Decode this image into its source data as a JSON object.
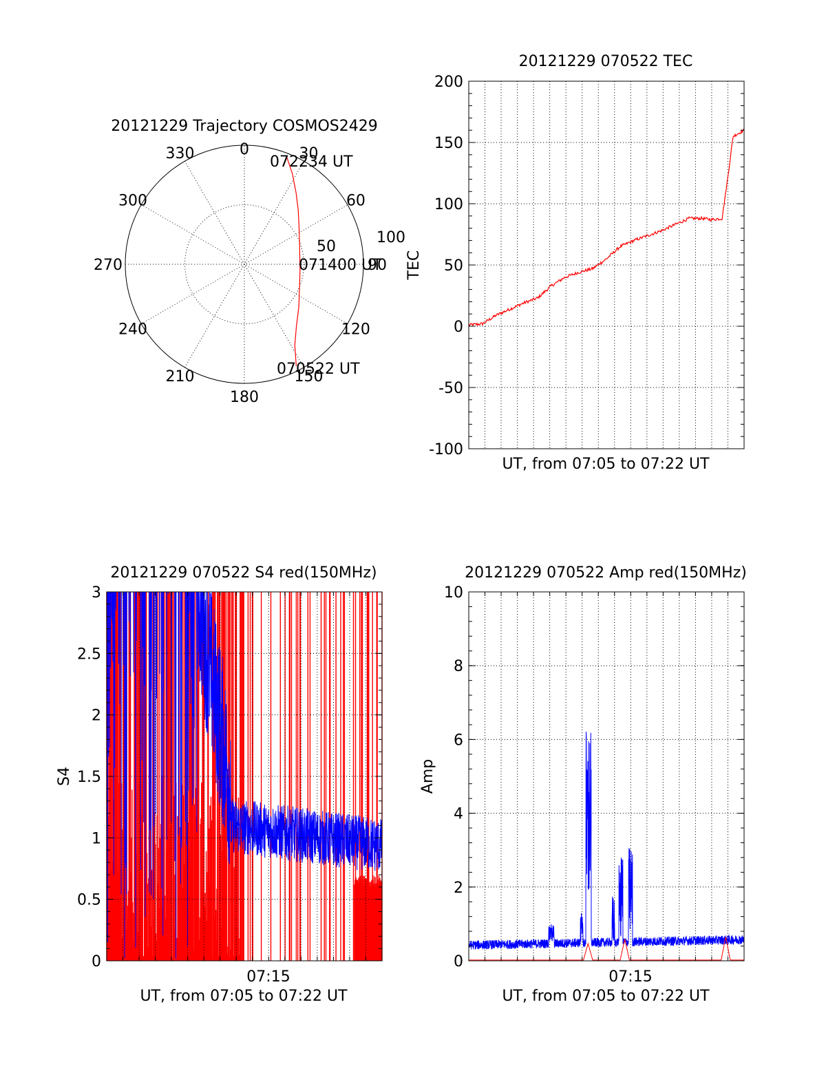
{
  "colors": {
    "red_channel": "#ff0000",
    "blue_channel": "#0000ff",
    "axes": "#000000"
  },
  "polar": {
    "title": "20121229 Trajectory COSMOS2429",
    "azimuth_labels": [
      "0",
      "30",
      "60",
      "90",
      "120",
      "150",
      "180",
      "210",
      "240",
      "270",
      "300",
      "330"
    ],
    "radial_labels": [
      "50",
      "100"
    ],
    "time_labels": [
      "072234 UT",
      "071400 UT",
      "070522 UT"
    ]
  },
  "chart_data": [
    {
      "type": "scatter",
      "title": "20121229 Trajectory COSMOS2429",
      "projection": "polar (azimuth deg, radius = zenith angle deg)",
      "rlim": [
        0,
        100
      ],
      "grid": true,
      "series": [
        {
          "azimuth": [
            153,
            148,
            140,
            128,
            112,
            96,
            82,
            68,
            55,
            45,
            36,
            28,
            21
          ],
          "radius": [
            96,
            80,
            68,
            58,
            50,
            47,
            47,
            50,
            56,
            64,
            74,
            86,
            98
          ]
        }
      ],
      "annotations": [
        "072234 UT",
        "071400 UT",
        "070522 UT"
      ]
    },
    {
      "type": "line",
      "title": "20121229 070522 TEC",
      "xlabel": "UT, from 07:05 to 07:22 UT",
      "ylabel": "TEC",
      "ylim": [
        -100,
        200
      ],
      "yticks": [
        "200",
        "150",
        "100",
        "50",
        "0",
        "-50",
        "-100"
      ],
      "grid": true,
      "x": [
        0,
        0.05,
        0.1,
        0.15,
        0.2,
        0.25,
        0.3,
        0.35,
        0.4,
        0.45,
        0.5,
        0.55,
        0.6,
        0.65,
        0.7,
        0.75,
        0.8,
        0.85,
        0.88,
        0.92,
        0.94,
        0.96,
        1.0
      ],
      "series": [
        {
          "values": [
            1,
            2,
            9,
            14,
            19,
            23,
            33,
            40,
            44,
            47,
            55,
            65,
            70,
            74,
            78,
            83,
            88,
            88,
            87,
            88,
            120,
            155,
            160
          ]
        }
      ]
    },
    {
      "type": "line",
      "title": "20121229 070522 S4 red(150MHz)",
      "xlabel": "UT, from 07:05 to 07:22 UT",
      "ylabel": "S4",
      "ylim": [
        0,
        3
      ],
      "yticks": [
        "3",
        "2.5",
        "2",
        "1.5",
        "1",
        "0.5",
        "0"
      ],
      "xticks": [
        "07:15"
      ],
      "grid": true,
      "series": [
        {
          "color": "#ff0000",
          "description_values": [
            3,
            3,
            2.4,
            1.5,
            0.7,
            0.5
          ]
        },
        {
          "color": "#0000ff",
          "description_values": [
            3,
            3,
            2.3,
            1.3,
            1.05,
            0.95
          ]
        }
      ]
    },
    {
      "type": "line",
      "title": "20121229 070522 Amp red(150MHz)",
      "xlabel": "UT, from 07:05 to 07:22 UT",
      "ylabel": "Amp",
      "ylim": [
        0,
        10
      ],
      "yticks": [
        "10",
        "8",
        "6",
        "4",
        "2",
        "0"
      ],
      "xticks": [
        "07:15"
      ],
      "grid": true,
      "series": [
        {
          "color": "#0000ff",
          "peaks": [
            {
              "value": 6.4
            },
            {
              "value": 2.8
            },
            {
              "value": 3.1
            }
          ],
          "baseline": 0.3
        },
        {
          "color": "#ff0000",
          "baseline": 0.0
        }
      ]
    }
  ]
}
